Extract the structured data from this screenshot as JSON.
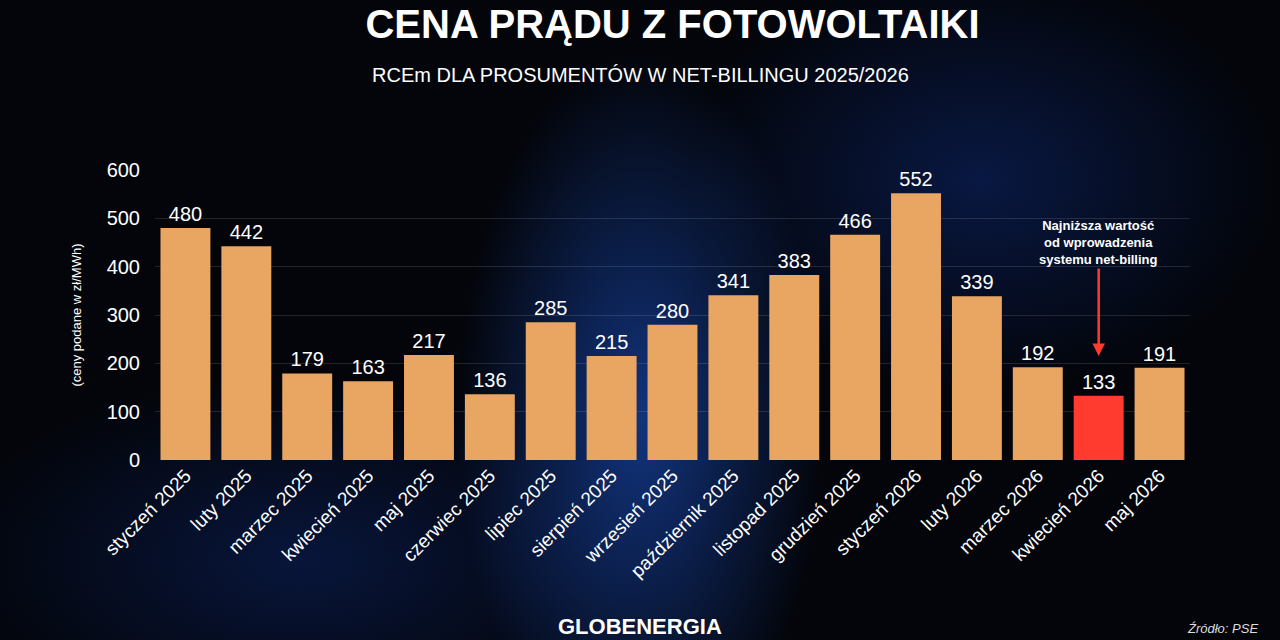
{
  "chart_data": {
    "type": "bar",
    "title": "CENA PRĄDU Z FOTOWOLTAIKI",
    "subtitle": "RCEm DLA PROSUMENTÓW W NET-BILLINGU 2025/2026",
    "y_label": "(ceny podane w zł/MWh)",
    "categories": [
      "styczeń 2025",
      "luty 2025",
      "marzec 2025",
      "kwiecień 2025",
      "maj 2025",
      "czerwiec 2025",
      "lipiec 2025",
      "sierpień 2025",
      "wrzesień 2025",
      "październik 2025",
      "listopad 2025",
      "grudzień 2025",
      "styczeń 2026",
      "luty 2026",
      "marzec 2026",
      "kwiecień 2026",
      "maj 2026"
    ],
    "values": [
      480,
      442,
      179,
      163,
      217,
      136,
      285,
      215,
      280,
      341,
      383,
      466,
      552,
      339,
      192,
      133,
      191
    ],
    "colors": [
      "#e9a562",
      "#e9a562",
      "#e9a562",
      "#e9a562",
      "#e9a562",
      "#e9a562",
      "#e9a562",
      "#e9a562",
      "#e9a562",
      "#e9a562",
      "#e9a562",
      "#e9a562",
      "#e9a562",
      "#e9a562",
      "#e9a562",
      "#ff3b30",
      "#e9a562"
    ],
    "ylim": [
      0,
      600
    ],
    "yticks": [
      0,
      100,
      200,
      300,
      400,
      500,
      600
    ],
    "grid": true,
    "data_labels": true,
    "annotations": [
      {
        "text": "Najniższa wartość od wprowadzenia systemu net-billing",
        "category": "kwiecień 2026"
      }
    ],
    "logo": "GLOBENERGIA",
    "source": "Źródło: PSE"
  }
}
